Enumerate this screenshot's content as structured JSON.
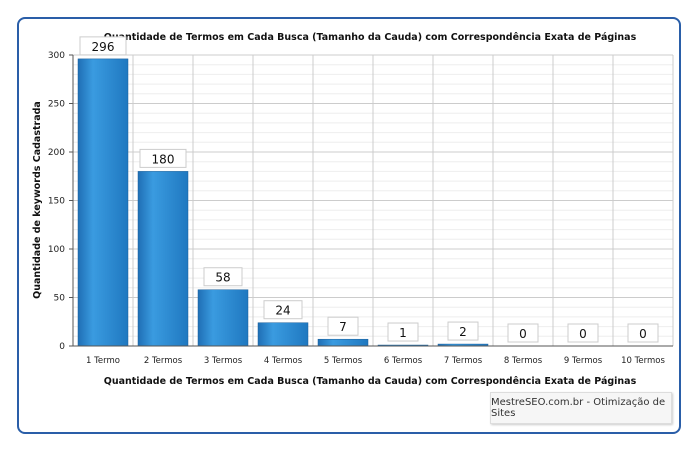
{
  "chart_data": {
    "type": "bar",
    "title": "Quantidade de Termos em Cada Busca (Tamanho da Cauda) com Correspondência Exata de Páginas",
    "xlabel": "Quantidade de Termos em Cada Busca (Tamanho da Cauda) com Correspondência Exata de Páginas",
    "ylabel": "Quantidade de keywords Cadastrada",
    "categories": [
      "1 Termo",
      "2 Termos",
      "3 Termos",
      "4 Termos",
      "5 Termos",
      "6 Termos",
      "7 Termos",
      "8 Termos",
      "9 Termos",
      "10 Termos"
    ],
    "values": [
      296,
      180,
      58,
      24,
      7,
      1,
      2,
      0,
      0,
      0
    ],
    "ylim": [
      0,
      300
    ],
    "yticks": [
      0,
      50,
      100,
      150,
      200,
      250,
      300
    ],
    "grid": true,
    "bar_color": "#2b8fd6"
  },
  "credit": "MestreSEO.com.br - Otimização de Sites"
}
